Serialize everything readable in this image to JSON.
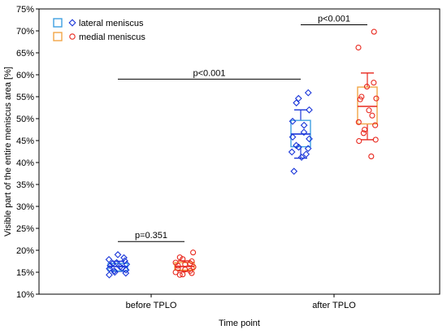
{
  "chart_data": {
    "type": "box-strip",
    "xlabel": "Time point",
    "ylabel": "Visible part of the entire meniscus area [%]",
    "ylim": [
      10,
      75
    ],
    "yticks": [
      10,
      15,
      20,
      25,
      30,
      35,
      40,
      45,
      50,
      55,
      60,
      65,
      70,
      75
    ],
    "ytick_suffix": "%",
    "categories": [
      "before TPLO",
      "after TPLO"
    ],
    "grid": false,
    "legend_position": "top-left",
    "series": [
      {
        "name": "lateral meniscus",
        "color": "#1a36d9",
        "box_color": "#3fa0e0",
        "marker": "diamond",
        "groups": [
          {
            "category": "before TPLO",
            "q1": 15.3,
            "median": 16.3,
            "q3": 17.0,
            "mean": 16.3,
            "whisker_low": 15.2,
            "whisker_high": 17.5,
            "points": [
              19.0,
              18.3,
              17.9,
              17.6,
              17.2,
              17.0,
              16.8,
              16.5,
              16.2,
              16.0,
              15.8,
              15.5,
              15.3,
              15.0,
              14.8,
              14.4
            ]
          },
          {
            "category": "after TPLO",
            "q1": 43.6,
            "median": 46.5,
            "q3": 49.6,
            "mean": 46.5,
            "whisker_low": 41.0,
            "whisker_high": 52.0,
            "points": [
              55.9,
              54.6,
              53.6,
              52.0,
              49.4,
              48.5,
              46.9,
              45.8,
              45.4,
              43.9,
              43.5,
              43.2,
              42.4,
              41.9,
              41.2,
              38.0
            ]
          }
        ]
      },
      {
        "name": "medial meniscus",
        "color": "#e8281e",
        "box_color": "#f2a646",
        "marker": "circle",
        "groups": [
          {
            "category": "before TPLO",
            "q1": 15.5,
            "median": 16.3,
            "q3": 17.2,
            "mean": 16.5,
            "whisker_low": 15.3,
            "whisker_high": 17.6,
            "points": [
              19.5,
              18.4,
              18.0,
              17.5,
              17.2,
              17.0,
              16.8,
              16.5,
              16.2,
              15.9,
              15.6,
              15.3,
              15.0,
              14.8,
              14.5,
              14.4
            ]
          },
          {
            "category": "after TPLO",
            "q1": 48.8,
            "median": 52.8,
            "q3": 57.2,
            "mean": 52.8,
            "whisker_low": 45.2,
            "whisker_high": 60.4,
            "points": [
              69.8,
              66.2,
              58.2,
              57.3,
              55.0,
              54.6,
              54.4,
              51.9,
              50.7,
              49.2,
              48.5,
              47.5,
              46.7,
              45.2,
              44.9,
              41.4
            ]
          }
        ]
      }
    ],
    "annotations": [
      {
        "text": "p=0.351",
        "y": 22.0,
        "from": {
          "category": "before TPLO",
          "series": 0
        },
        "to": {
          "category": "before TPLO",
          "series": 1
        }
      },
      {
        "text": "p<0.001",
        "y": 59.0,
        "from": {
          "category": "before TPLO",
          "series": 0
        },
        "to": {
          "category": "after TPLO",
          "series": 0
        }
      },
      {
        "text": "p<0.001",
        "y": 71.4,
        "from": {
          "category": "after TPLO",
          "series": 0
        },
        "to": {
          "category": "after TPLO",
          "series": 1
        }
      }
    ]
  }
}
